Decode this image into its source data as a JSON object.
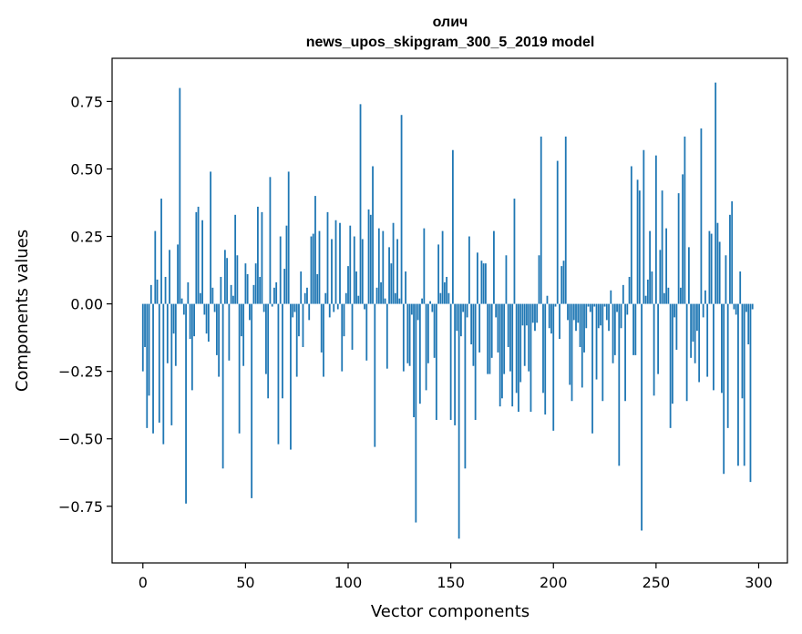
{
  "chart_data": {
    "type": "bar",
    "title_line1": "олич",
    "title_line2": "news_upos_skipgram_300_5_2019 model",
    "xlabel": "Vector components",
    "ylabel": "Components values",
    "xlim": [
      -15,
      314
    ],
    "ylim": [
      -0.96,
      0.91
    ],
    "x_ticks": [
      0,
      50,
      100,
      150,
      200,
      250,
      300
    ],
    "x_tick_labels": [
      "0",
      "50",
      "100",
      "150",
      "200",
      "250",
      "300"
    ],
    "y_ticks": [
      0.75,
      0.5,
      0.25,
      0.0,
      -0.25,
      -0.5,
      -0.75
    ],
    "y_tick_labels": [
      "0.75",
      "0.50",
      "0.25",
      "0.00",
      "−0.25",
      "−0.50",
      "−0.75"
    ],
    "bar_color": "#1f77b4",
    "values": [
      -0.25,
      -0.16,
      -0.46,
      -0.34,
      0.07,
      -0.48,
      0.27,
      0.09,
      -0.44,
      0.39,
      -0.52,
      0.1,
      -0.22,
      0.2,
      -0.45,
      -0.11,
      -0.23,
      0.22,
      0.8,
      0.02,
      -0.04,
      -0.74,
      0.08,
      -0.13,
      -0.32,
      -0.12,
      0.34,
      0.36,
      0.04,
      0.31,
      -0.04,
      -0.11,
      -0.14,
      0.49,
      0.06,
      -0.03,
      -0.19,
      -0.27,
      0.1,
      -0.61,
      0.2,
      0.17,
      -0.21,
      0.07,
      0.03,
      0.33,
      0.18,
      -0.48,
      -0.12,
      -0.23,
      0.15,
      0.11,
      -0.06,
      -0.72,
      0.07,
      0.15,
      0.36,
      0.1,
      0.34,
      -0.03,
      -0.26,
      -0.35,
      0.47,
      -0.01,
      0.06,
      0.08,
      -0.52,
      0.25,
      -0.35,
      0.13,
      0.29,
      0.49,
      -0.54,
      -0.05,
      -0.03,
      -0.27,
      -0.12,
      0.12,
      -0.16,
      0.04,
      0.06,
      -0.06,
      0.25,
      0.26,
      0.4,
      0.11,
      0.27,
      -0.18,
      -0.27,
      0.04,
      0.34,
      -0.05,
      0.24,
      -0.03,
      0.31,
      -0.02,
      0.3,
      -0.25,
      -0.12,
      0.04,
      0.14,
      0.29,
      -0.17,
      0.25,
      0.12,
      0.03,
      0.74,
      0.24,
      -0.02,
      -0.21,
      0.35,
      0.33,
      0.51,
      -0.53,
      0.06,
      0.28,
      0.08,
      0.27,
      0.02,
      -0.24,
      0.21,
      0.15,
      0.3,
      0.04,
      0.24,
      0.02,
      0.7,
      -0.25,
      0.12,
      -0.22,
      -0.23,
      -0.04,
      -0.42,
      -0.81,
      -0.06,
      -0.37,
      0.02,
      0.28,
      -0.32,
      -0.22,
      0.01,
      -0.03,
      -0.2,
      -0.43,
      0.22,
      0.04,
      0.27,
      0.08,
      0.1,
      0.04,
      -0.43,
      0.57,
      -0.45,
      -0.1,
      -0.87,
      -0.12,
      -0.03,
      -0.61,
      -0.05,
      0.25,
      -0.15,
      -0.23,
      -0.43,
      0.19,
      -0.18,
      0.16,
      0.15,
      0.15,
      -0.26,
      -0.26,
      -0.2,
      0.27,
      -0.05,
      -0.18,
      -0.38,
      -0.35,
      -0.26,
      0.18,
      -0.16,
      -0.25,
      -0.38,
      0.39,
      -0.33,
      -0.4,
      -0.29,
      -0.08,
      -0.23,
      -0.08,
      -0.25,
      -0.4,
      -0.07,
      -0.1,
      -0.07,
      0.18,
      0.62,
      -0.33,
      -0.41,
      0.03,
      -0.09,
      -0.11,
      -0.47,
      -0.01,
      0.53,
      -0.13,
      0.14,
      0.16,
      0.62,
      -0.06,
      -0.3,
      -0.36,
      -0.06,
      -0.1,
      -0.07,
      -0.16,
      -0.31,
      -0.18,
      -0.09,
      -0.01,
      -0.03,
      -0.48,
      -0.01,
      -0.28,
      -0.09,
      -0.08,
      -0.36,
      -0.01,
      -0.06,
      -0.1,
      0.05,
      -0.22,
      -0.19,
      -0.03,
      -0.6,
      -0.09,
      0.07,
      -0.36,
      -0.04,
      0.1,
      0.51,
      -0.19,
      -0.19,
      0.46,
      0.42,
      -0.84,
      0.57,
      0.03,
      0.09,
      0.27,
      0.12,
      -0.34,
      0.55,
      -0.26,
      0.2,
      0.42,
      0.04,
      0.28,
      0.06,
      -0.46,
      -0.37,
      -0.05,
      -0.17,
      0.41,
      0.06,
      0.48,
      0.62,
      -0.36,
      0.21,
      -0.2,
      -0.14,
      -0.22,
      -0.1,
      -0.29,
      0.65,
      -0.05,
      0.05,
      -0.27,
      0.27,
      0.26,
      -0.32,
      0.82,
      0.3,
      0.23,
      -0.33,
      -0.63,
      0.18,
      -0.46,
      0.33,
      0.38,
      -0.02,
      -0.04,
      -0.6,
      0.12,
      -0.35,
      -0.6,
      -0.03,
      -0.15,
      -0.66,
      -0.02
    ]
  }
}
